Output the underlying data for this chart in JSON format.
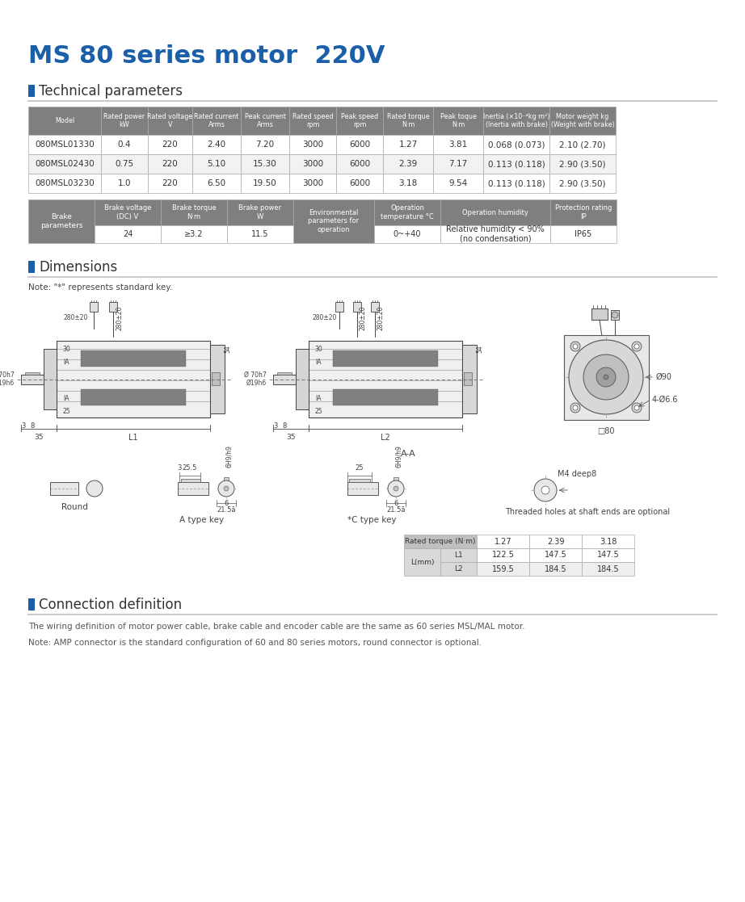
{
  "title": "MS 80 series motor  220V",
  "title_color": "#1a5fa8",
  "section1": "Technical parameters",
  "section2": "Dimensions",
  "section3": "Connection definition",
  "bg_color": "#ffffff",
  "table1_headers": [
    "Model",
    "Rated power\nkW",
    "Rated voltage\nV",
    "Rated current\nArms",
    "Peak current\nArms",
    "Rated speed\nrpm",
    "Peak speed\nrpm",
    "Rated torque\nN·m",
    "Peak toque\nN·m",
    "Inertia (×10⁻⁴kg·m²)\n(Inertia with brake)",
    "Motor weight kg\n(Weight with brake)"
  ],
  "table1_data": [
    [
      "080MSL01330",
      "0.4",
      "220",
      "2.40",
      "7.20",
      "3000",
      "6000",
      "1.27",
      "3.81",
      "0.068 (0.073)",
      "2.10 (2.70)"
    ],
    [
      "080MSL02430",
      "0.75",
      "220",
      "5.10",
      "15.30",
      "3000",
      "6000",
      "2.39",
      "7.17",
      "0.113 (0.118)",
      "2.90 (3.50)"
    ],
    [
      "080MSL03230",
      "1.0",
      "220",
      "6.50",
      "19.50",
      "3000",
      "6000",
      "3.18",
      "9.54",
      "0.113 (0.118)",
      "2.90 (3.50)"
    ]
  ],
  "table2_headers": [
    "Brake\nparameters",
    "Brake voltage\n(DC) V",
    "Brake torque\nN·m",
    "Brake power\nW",
    "Environmental\nparameters for\noperation",
    "Operation\ntemperature °C",
    "Operation humidity",
    "Protection rating\nIP"
  ],
  "table2_data_row": [
    "24",
    "≥3.2",
    "11.5",
    "",
    "0~+40",
    "Relative humidity < 90%\n(no condensation)",
    "IP65"
  ],
  "dim_note": "Note: \"*\" represents standard key.",
  "dim_l1": [
    "122.5",
    "147.5",
    "147.5"
  ],
  "dim_l2": [
    "159.5",
    "184.5",
    "184.5"
  ],
  "dim_torque": [
    "1.27",
    "2.39",
    "3.18"
  ],
  "conn_text1": "The wiring definition of motor power cable, brake cable and encoder cable are the same as 60 series MSL/MAL motor.",
  "conn_text2": "Note: AMP connector is the standard configuration of 60 and 80 series motors, round connector is optional.",
  "header_bg": "#7f7f7f",
  "header_fg": "#ffffff",
  "row_bg_odd": "#f2f2f2",
  "row_bg_even": "#ffffff",
  "border_color": "#aaaaaa",
  "dim_table_header_bg": "#bfbfbf",
  "dim_table_sub_bg": "#d9d9d9",
  "section_square_color": "#1a5fa8",
  "section_line_color": "#c0c0c0"
}
